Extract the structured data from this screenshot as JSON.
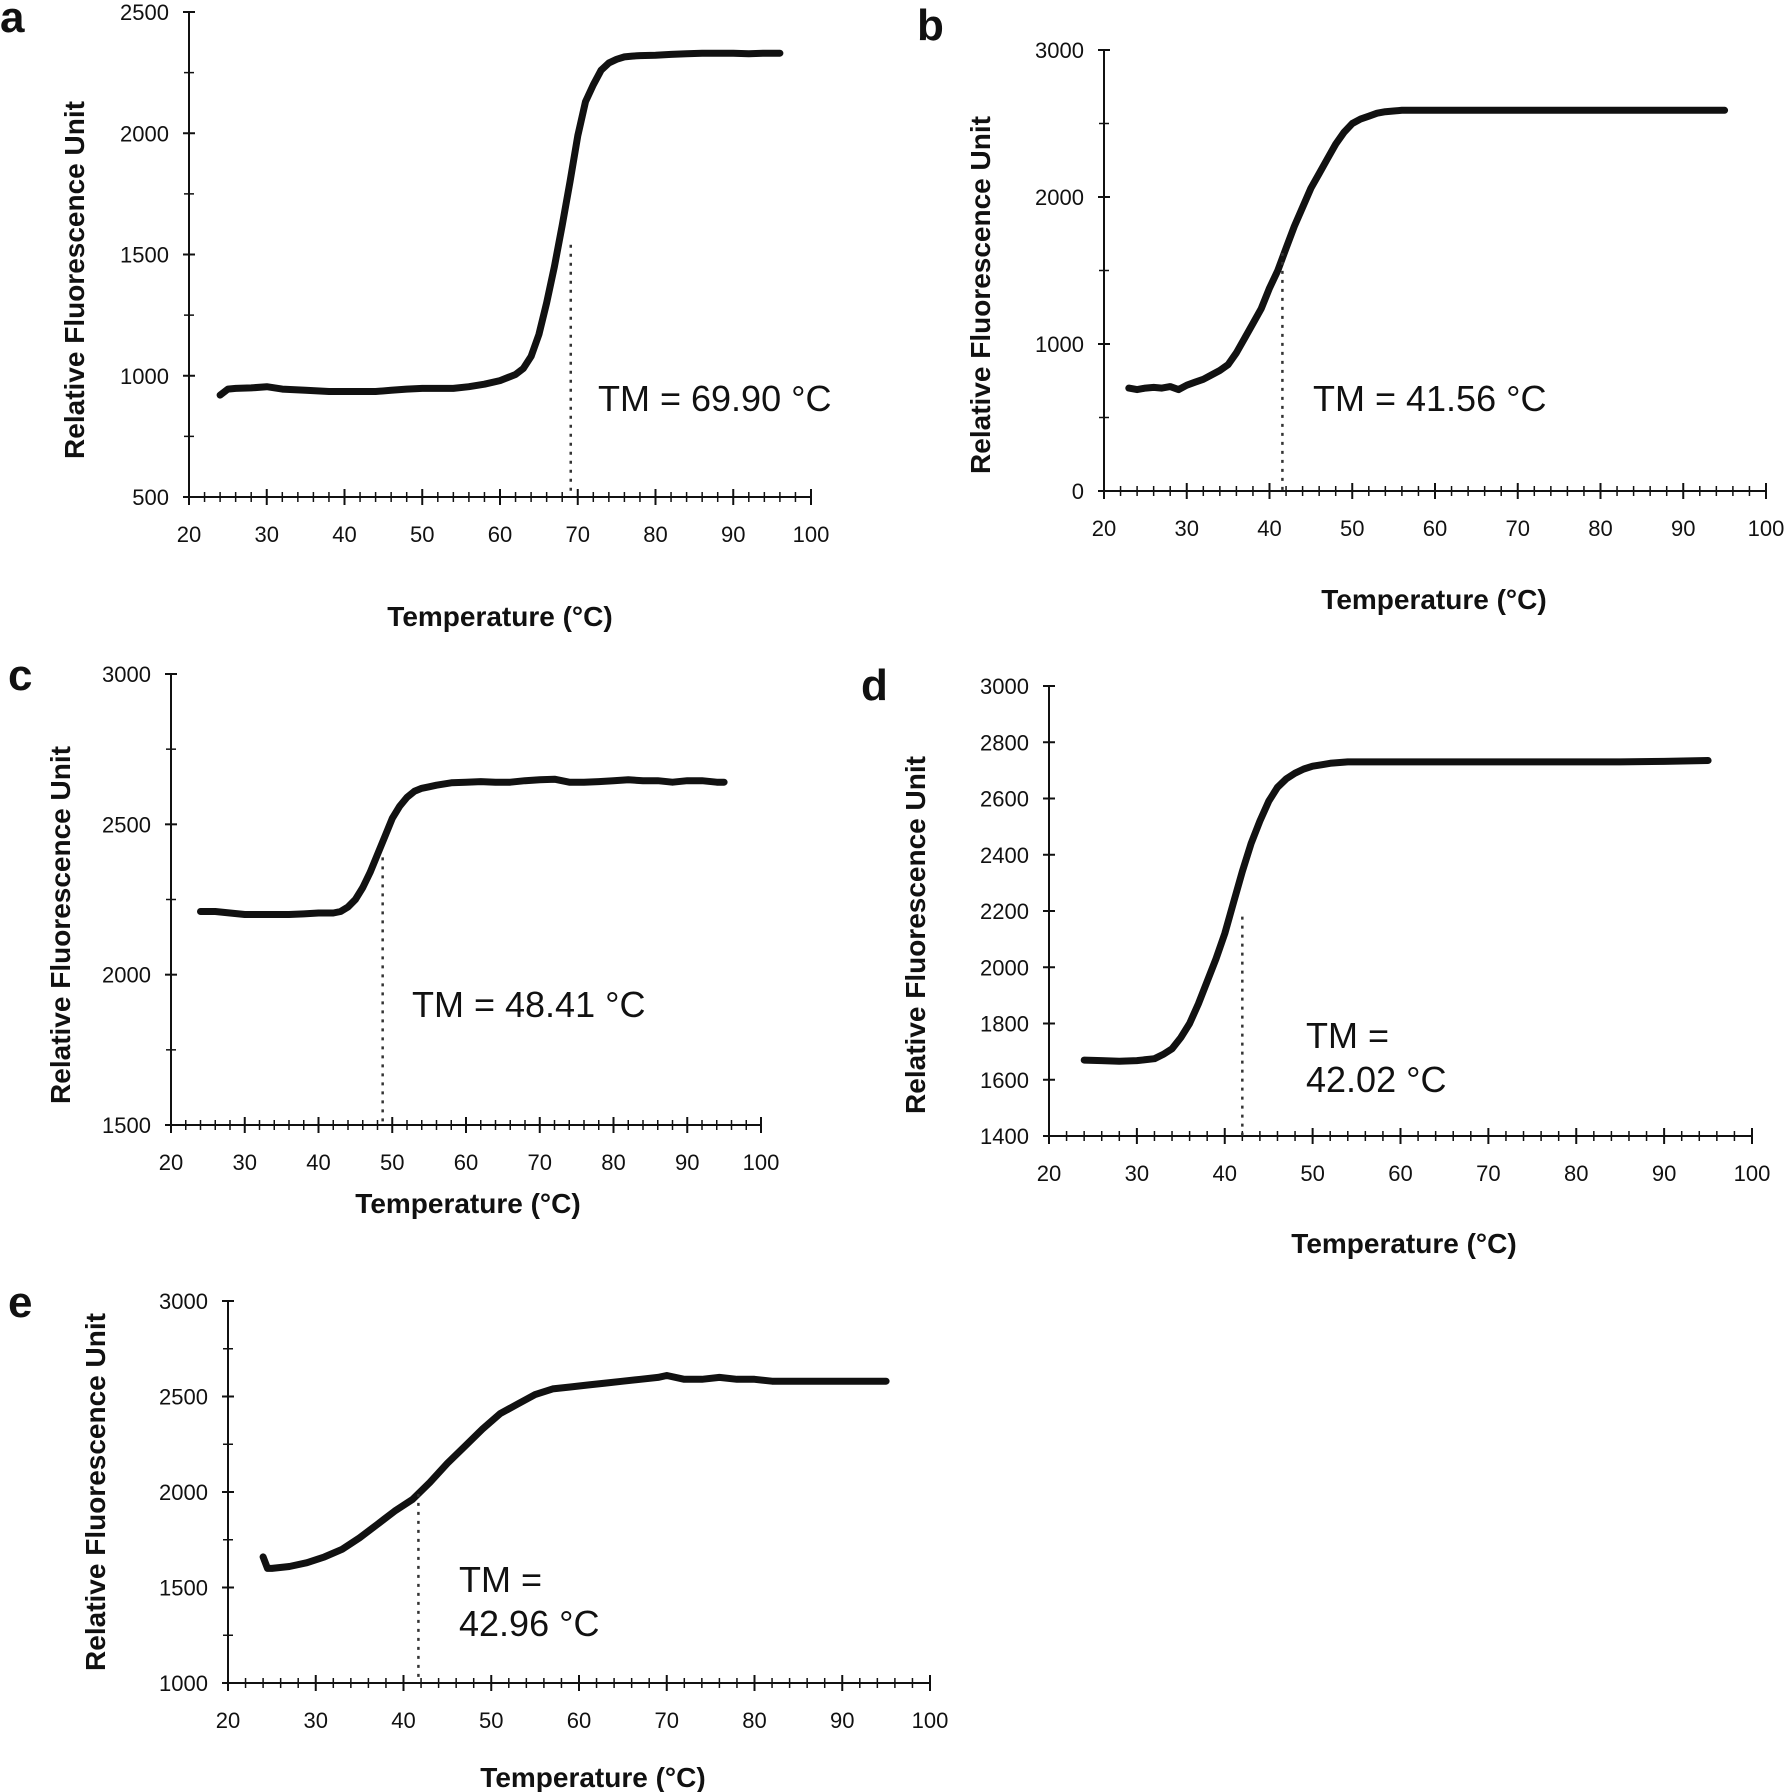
{
  "chart_data": [
    {
      "panel": "a",
      "type": "line",
      "xlabel": "Temperature (°C)",
      "ylabel": "Relative Fluorescence Unit",
      "xlim": [
        20,
        100
      ],
      "ylim": [
        500,
        2500
      ],
      "xticks": [
        20,
        30,
        40,
        50,
        60,
        70,
        80,
        90,
        100
      ],
      "yticks": [
        500,
        1000,
        1500,
        2000,
        2500
      ],
      "series": [
        {
          "x": [
            24,
            25,
            26,
            28,
            30,
            32,
            35,
            38,
            40,
            42,
            44,
            46,
            48,
            50,
            52,
            54,
            56,
            58,
            60,
            62,
            63,
            64,
            65,
            66,
            67,
            68,
            69,
            70,
            71,
            72,
            73,
            74,
            75,
            76,
            77,
            78,
            80,
            82,
            84,
            86,
            88,
            90,
            92,
            94,
            96
          ],
          "y": [
            920,
            945,
            948,
            950,
            955,
            945,
            940,
            935,
            935,
            935,
            935,
            940,
            945,
            948,
            948,
            948,
            955,
            965,
            980,
            1005,
            1030,
            1080,
            1170,
            1300,
            1450,
            1620,
            1800,
            1990,
            2130,
            2200,
            2260,
            2290,
            2305,
            2315,
            2318,
            2320,
            2322,
            2325,
            2328,
            2330,
            2330,
            2330,
            2328,
            2330,
            2330
          ]
        }
      ],
      "tm_x": 69.1,
      "tm_y": 1540,
      "tm_text": "TM = 69.90 °C",
      "tm_line2": ""
    },
    {
      "panel": "b",
      "type": "line",
      "xlabel": "Temperature (°C)",
      "ylabel": "Relative Fluorescence Unit",
      "xlim": [
        20,
        100
      ],
      "ylim": [
        0,
        3000
      ],
      "xticks": [
        20,
        30,
        40,
        50,
        60,
        70,
        80,
        90,
        100
      ],
      "yticks": [
        0,
        1000,
        2000,
        3000
      ],
      "series": [
        {
          "x": [
            23,
            24,
            25,
            26,
            27,
            28,
            29,
            30,
            31,
            32,
            33,
            34,
            35,
            36,
            37,
            38,
            39,
            40,
            41,
            42,
            43,
            44,
            45,
            46,
            47,
            48,
            49,
            50,
            51,
            52,
            53,
            54,
            55,
            56,
            58,
            60,
            65,
            70,
            75,
            80,
            85,
            90,
            95
          ],
          "y": [
            700,
            690,
            700,
            705,
            700,
            710,
            690,
            720,
            740,
            760,
            790,
            820,
            860,
            940,
            1040,
            1140,
            1240,
            1380,
            1500,
            1650,
            1800,
            1930,
            2060,
            2160,
            2260,
            2360,
            2440,
            2500,
            2530,
            2550,
            2570,
            2580,
            2585,
            2590,
            2590,
            2590,
            2590,
            2590,
            2590,
            2590,
            2590,
            2590,
            2590
          ]
        }
      ],
      "tm_x": 41.56,
      "tm_y": 1620,
      "tm_text": "TM = 41.56 °C",
      "tm_line2": ""
    },
    {
      "panel": "c",
      "type": "line",
      "xlabel": "Temperature (°C)",
      "ylabel": "Relative Fluorescence Unit",
      "xlim": [
        20,
        100
      ],
      "ylim": [
        1500,
        3000
      ],
      "xticks": [
        20,
        30,
        40,
        50,
        60,
        70,
        80,
        90,
        100
      ],
      "yticks": [
        1500,
        2000,
        2500,
        3000
      ],
      "series": [
        {
          "x": [
            24,
            26,
            28,
            30,
            32,
            34,
            36,
            38,
            40,
            42,
            43,
            44,
            45,
            46,
            47,
            48,
            49,
            50,
            51,
            52,
            53,
            54,
            55,
            56,
            58,
            60,
            62,
            64,
            66,
            68,
            70,
            72,
            74,
            76,
            78,
            80,
            82,
            84,
            86,
            88,
            90,
            92,
            94,
            95
          ],
          "y": [
            2210,
            2210,
            2205,
            2200,
            2200,
            2200,
            2200,
            2202,
            2205,
            2205,
            2210,
            2225,
            2250,
            2290,
            2340,
            2400,
            2460,
            2520,
            2560,
            2590,
            2610,
            2620,
            2625,
            2630,
            2638,
            2640,
            2642,
            2640,
            2640,
            2645,
            2648,
            2650,
            2640,
            2640,
            2642,
            2645,
            2648,
            2645,
            2645,
            2640,
            2645,
            2645,
            2640,
            2640
          ]
        }
      ],
      "tm_x": 48.7,
      "tm_y": 2390,
      "tm_text": "TM = 48.41 °C",
      "tm_line2": ""
    },
    {
      "panel": "d",
      "type": "line",
      "xlabel": "Temperature (°C)",
      "ylabel": "Relative Fluorescence Unit",
      "xlim": [
        20,
        100
      ],
      "ylim": [
        1400,
        3000
      ],
      "xticks": [
        20,
        30,
        40,
        50,
        60,
        70,
        80,
        90,
        100
      ],
      "yticks": [
        1400,
        1600,
        1800,
        2000,
        2200,
        2400,
        2600,
        2800,
        3000
      ],
      "series": [
        {
          "x": [
            24,
            26,
            28,
            30,
            32,
            33,
            34,
            35,
            36,
            37,
            38,
            39,
            40,
            41,
            42,
            43,
            44,
            45,
            46,
            47,
            48,
            49,
            50,
            51,
            52,
            54,
            56,
            58,
            60,
            65,
            70,
            75,
            80,
            85,
            90,
            95
          ],
          "y": [
            1670,
            1668,
            1666,
            1668,
            1675,
            1690,
            1710,
            1750,
            1800,
            1870,
            1950,
            2030,
            2120,
            2230,
            2340,
            2440,
            2520,
            2590,
            2640,
            2670,
            2690,
            2705,
            2715,
            2720,
            2725,
            2730,
            2730,
            2730,
            2730,
            2730,
            2730,
            2730,
            2730,
            2730,
            2732,
            2735
          ]
        }
      ],
      "tm_x": 42.0,
      "tm_y": 2180,
      "tm_text": "TM =",
      "tm_line2": "42.02 °C"
    },
    {
      "panel": "e",
      "type": "line",
      "xlabel": "Temperature (°C)",
      "ylabel": "Relative Fluorescence Unit",
      "xlim": [
        20,
        100
      ],
      "ylim": [
        1000,
        3000
      ],
      "xticks": [
        20,
        30,
        40,
        50,
        60,
        70,
        80,
        90,
        100
      ],
      "yticks": [
        1000,
        1500,
        2000,
        2500,
        3000
      ],
      "series": [
        {
          "x": [
            24,
            24.5,
            25,
            27,
            29,
            31,
            33,
            35,
            37,
            39,
            41,
            43,
            45,
            47,
            49,
            51,
            53,
            55,
            57,
            59,
            61,
            63,
            65,
            67,
            69,
            70,
            72,
            74,
            76,
            78,
            80,
            82,
            84,
            86,
            88,
            90,
            92,
            95
          ],
          "y": [
            1660,
            1600,
            1600,
            1610,
            1630,
            1660,
            1700,
            1760,
            1830,
            1900,
            1960,
            2050,
            2150,
            2240,
            2330,
            2410,
            2460,
            2510,
            2540,
            2550,
            2560,
            2570,
            2580,
            2590,
            2600,
            2610,
            2590,
            2590,
            2600,
            2590,
            2590,
            2580,
            2580,
            2580,
            2580,
            2580,
            2580,
            2580
          ]
        }
      ],
      "tm_x": 41.7,
      "tm_y": 1990,
      "tm_text": "TM =",
      "tm_line2": "42.96 °C"
    }
  ]
}
